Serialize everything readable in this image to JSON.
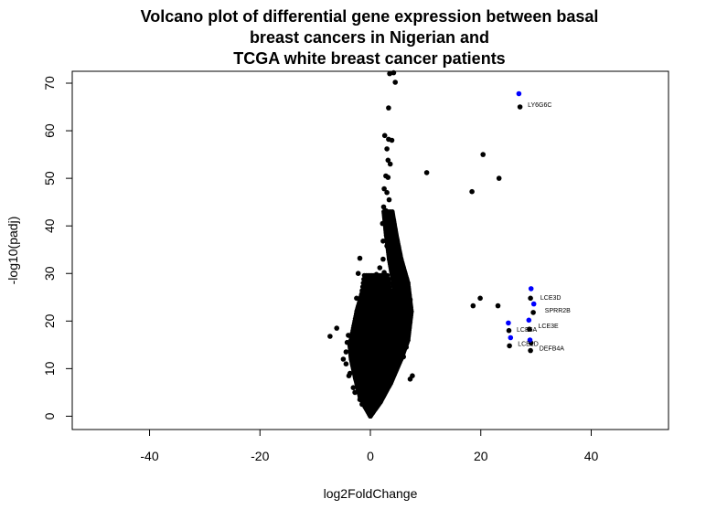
{
  "chart_data": {
    "type": "scatter",
    "title_lines": [
      "Volcano plot of differential gene expression between basal",
      "breast cancers in Nigerian and",
      "TCGA white breast cancer patients"
    ],
    "xlabel": "log2FoldChange",
    "ylabel": "-log10(padj)",
    "xlim": [
      -54,
      54
    ],
    "ylim": [
      -2.8,
      72.5
    ],
    "x_ticks": [
      -40,
      -20,
      0,
      20,
      40
    ],
    "y_ticks": [
      0,
      10,
      20,
      30,
      40,
      50,
      60,
      70
    ],
    "grid": false,
    "legend": "none",
    "colors": {
      "default": "#000000",
      "highlight": "#0000ff"
    },
    "series": [
      {
        "color": "#000000",
        "points": [
          [
            3.5,
            72.0
          ],
          [
            4.2,
            72.2
          ],
          [
            4.5,
            70.2
          ],
          [
            3.3,
            64.8
          ],
          [
            2.6,
            59.0
          ],
          [
            3.3,
            58.2
          ],
          [
            3.9,
            58.0
          ],
          [
            3.0,
            56.2
          ],
          [
            3.2,
            53.8
          ],
          [
            3.6,
            53.0
          ],
          [
            2.8,
            50.5
          ],
          [
            3.2,
            50.2
          ],
          [
            2.5,
            47.8
          ],
          [
            3.0,
            47.0
          ],
          [
            3.4,
            45.5
          ],
          [
            2.4,
            44.0
          ],
          [
            2.8,
            43.2
          ],
          [
            3.2,
            42.0
          ],
          [
            3.6,
            41.8
          ],
          [
            2.2,
            40.5
          ],
          [
            2.9,
            39.2
          ],
          [
            3.4,
            38.5
          ],
          [
            4.0,
            38.0
          ],
          [
            4.6,
            37.2
          ],
          [
            2.3,
            36.8
          ],
          [
            3.0,
            35.8
          ],
          [
            3.7,
            35.5
          ],
          [
            -1.9,
            33.2
          ],
          [
            2.3,
            33.0
          ],
          [
            4.1,
            32.5
          ],
          [
            1.7,
            31.2
          ],
          [
            4.6,
            31.0
          ],
          [
            -2.2,
            30.0
          ],
          [
            1.1,
            29.8
          ],
          [
            2.5,
            30.2
          ],
          [
            5.1,
            29.0
          ],
          [
            6.5,
            28.5
          ],
          [
            4.8,
            27.6
          ],
          [
            5.8,
            26.5
          ],
          [
            -0.7,
            26.0
          ],
          [
            1.8,
            26.5
          ],
          [
            0.9,
            25.0
          ],
          [
            7.2,
            24.5
          ],
          [
            -2.5,
            24.8
          ],
          [
            -0.9,
            23.5
          ],
          [
            -1.9,
            22.0
          ],
          [
            -0.8,
            20.5
          ],
          [
            -6.1,
            18.5
          ],
          [
            -3.0,
            18.0
          ],
          [
            -7.3,
            16.8
          ],
          [
            -4.0,
            17.0
          ],
          [
            -4.2,
            15.5
          ],
          [
            -4.4,
            13.5
          ],
          [
            -4.9,
            12.0
          ],
          [
            -4.4,
            11.0
          ],
          [
            -3.7,
            9.0
          ],
          [
            -3.9,
            8.5
          ],
          [
            -3.1,
            6.0
          ],
          [
            -2.8,
            5.0
          ],
          [
            -1.7,
            4.5
          ],
          [
            -1.9,
            3.5
          ],
          [
            -1.5,
            2.5
          ],
          [
            7.6,
            8.5
          ],
          [
            7.2,
            7.8
          ],
          [
            6.5,
            14.5
          ],
          [
            5.9,
            16.0
          ],
          [
            6.0,
            12.5
          ],
          [
            6.0,
            22.0
          ],
          [
            5.5,
            19.5
          ],
          [
            10.2,
            51.2
          ],
          [
            18.4,
            47.2
          ],
          [
            20.4,
            55.0
          ],
          [
            23.3,
            50.0
          ],
          [
            27.1,
            65.0
          ],
          [
            18.6,
            23.2
          ],
          [
            19.9,
            24.8
          ],
          [
            23.1,
            23.2
          ],
          [
            29.0,
            24.8
          ],
          [
            29.5,
            21.8
          ],
          [
            28.8,
            18.3
          ],
          [
            25.1,
            18.0
          ],
          [
            25.2,
            14.8
          ],
          [
            29.1,
            15.4
          ],
          [
            29.0,
            13.8
          ]
        ]
      },
      {
        "color": "#0000ff",
        "points": [
          [
            26.9,
            67.8
          ],
          [
            29.1,
            26.8
          ],
          [
            29.6,
            23.6
          ],
          [
            28.7,
            20.2
          ],
          [
            25.0,
            19.6
          ],
          [
            25.4,
            16.5
          ],
          [
            28.9,
            16.0
          ]
        ]
      }
    ],
    "labeled_genes": [
      {
        "label": "LY6G6C",
        "x": 28.5,
        "y": 65.5
      },
      {
        "label": "LCE3D",
        "x": 30.8,
        "y": 25.0
      },
      {
        "label": "SPRR2B",
        "x": 31.6,
        "y": 22.3
      },
      {
        "label": "LCE3E",
        "x": 30.4,
        "y": 19.0
      },
      {
        "label": "LCE6A",
        "x": 26.5,
        "y": 18.2
      },
      {
        "label": "LCE1D",
        "x": 26.7,
        "y": 15.3
      },
      {
        "label": "DEFB4A",
        "x": 30.6,
        "y": 14.3
      }
    ],
    "dense_cloud": {
      "description_free_params": true,
      "left_branch": [
        [
          0,
          0
        ],
        [
          -0.8,
          2
        ],
        [
          -1.5,
          4
        ],
        [
          -2.2,
          8
        ],
        [
          -2.8,
          12
        ],
        [
          -3.0,
          15
        ],
        [
          -2.0,
          22
        ],
        [
          -1.2,
          26
        ]
      ],
      "right_branch": [
        [
          0,
          0
        ],
        [
          1.5,
          3
        ],
        [
          3.0,
          7
        ],
        [
          4.5,
          12
        ],
        [
          5.5,
          16
        ],
        [
          6.0,
          22
        ],
        [
          5.5,
          28
        ],
        [
          4.5,
          33
        ],
        [
          3.8,
          38
        ],
        [
          3.2,
          43
        ]
      ]
    }
  }
}
